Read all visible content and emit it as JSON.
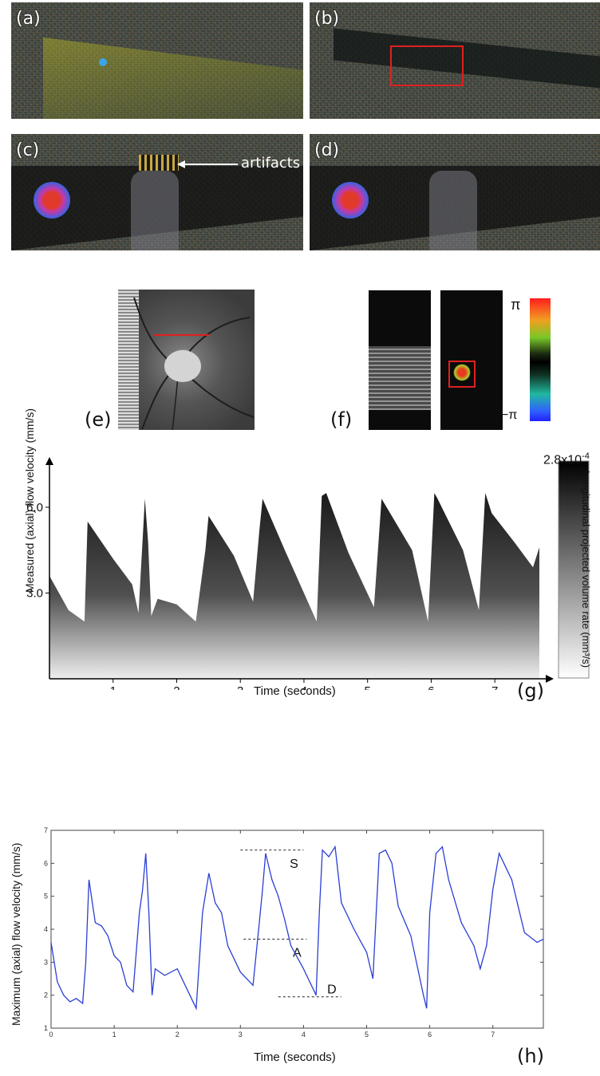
{
  "panels": {
    "a": {
      "label": "(a)"
    },
    "b": {
      "label": "(b)"
    },
    "c": {
      "label": "(c)",
      "annotation": "artifacts"
    },
    "d": {
      "label": "(d)"
    },
    "e": {
      "label": "(e)"
    },
    "f": {
      "label": "(f)",
      "colorbar_top": "π",
      "colorbar_bottom": "−π"
    },
    "g": {
      "label": "(g)"
    },
    "h": {
      "label": "(h)"
    }
  },
  "chart_data": [
    {
      "type": "heatmap",
      "panel": "g",
      "xlabel": "Time (seconds)",
      "ylabel": "Measured (axial) flow velocity (mm/s)",
      "colorbar_label": "Longitudinal projected volume rate (mm³/s)",
      "colorbar_max": "2.8x10",
      "colorbar_exp": "-4",
      "xticks": [
        "1",
        "2",
        "3",
        "4",
        "5",
        "6",
        "7"
      ],
      "yticks": [
        "3.0",
        "6.0"
      ],
      "xlim": [
        0,
        7.7
      ],
      "ylim": [
        0,
        7.2
      ],
      "envelope": {
        "x": [
          0,
          0.3,
          0.55,
          0.6,
          1.0,
          1.3,
          1.4,
          1.5,
          1.55,
          1.6,
          1.7,
          2.0,
          2.3,
          2.45,
          2.5,
          2.9,
          3.2,
          3.3,
          3.35,
          3.7,
          4.2,
          4.28,
          4.35,
          4.7,
          5.1,
          5.22,
          5.3,
          5.7,
          5.95,
          6.05,
          6.1,
          6.5,
          6.75,
          6.85,
          6.95,
          7.3,
          7.6,
          7.7
        ],
        "y": [
          3.6,
          2.4,
          2.0,
          5.5,
          4.2,
          3.3,
          2.3,
          6.3,
          4.8,
          2.2,
          2.8,
          2.6,
          2.0,
          4.5,
          5.7,
          4.3,
          2.7,
          5.2,
          6.3,
          4.5,
          2.0,
          6.4,
          6.5,
          4.4,
          2.5,
          6.3,
          6.0,
          4.5,
          2.0,
          6.5,
          6.3,
          4.5,
          2.4,
          6.5,
          5.8,
          4.8,
          3.9,
          4.6
        ]
      }
    },
    {
      "type": "line",
      "panel": "h",
      "xlabel": "Time (seconds)",
      "ylabel": "Maximum (axial) flow velocity (mm/s)",
      "xlim": [
        0,
        7.8
      ],
      "ylim": [
        1,
        7
      ],
      "xticks": [
        "0",
        "1",
        "2",
        "3",
        "4",
        "5",
        "6",
        "7"
      ],
      "yticks": [
        "1",
        "2",
        "3",
        "4",
        "5",
        "6",
        "7"
      ],
      "series": [
        {
          "x": [
            0,
            0.1,
            0.2,
            0.3,
            0.4,
            0.5,
            0.55,
            0.6,
            0.7,
            0.8,
            0.9,
            1.0,
            1.1,
            1.2,
            1.3,
            1.4,
            1.45,
            1.5,
            1.55,
            1.6,
            1.65,
            1.8,
            2.0,
            2.2,
            2.3,
            2.4,
            2.5,
            2.6,
            2.7,
            2.8,
            3.0,
            3.2,
            3.3,
            3.35,
            3.4,
            3.5,
            3.6,
            3.7,
            3.8,
            4.0,
            4.2,
            4.25,
            4.3,
            4.4,
            4.5,
            4.6,
            4.8,
            5.0,
            5.1,
            5.2,
            5.3,
            5.4,
            5.5,
            5.7,
            5.9,
            5.95,
            6.0,
            6.1,
            6.2,
            6.3,
            6.5,
            6.7,
            6.8,
            6.9,
            7.0,
            7.1,
            7.3,
            7.5,
            7.7,
            7.8
          ],
          "y": [
            3.6,
            2.4,
            2.0,
            1.8,
            1.9,
            1.75,
            3.0,
            5.5,
            4.2,
            4.1,
            3.8,
            3.2,
            3.0,
            2.3,
            2.1,
            4.5,
            5.2,
            6.3,
            4.5,
            2.0,
            2.8,
            2.6,
            2.8,
            2.0,
            1.6,
            4.5,
            5.7,
            4.8,
            4.5,
            3.5,
            2.7,
            2.3,
            4.2,
            5.2,
            6.3,
            5.5,
            5.0,
            4.3,
            3.5,
            2.8,
            2.0,
            4.5,
            6.4,
            6.2,
            6.5,
            4.8,
            4.0,
            3.3,
            2.5,
            6.3,
            6.4,
            6.0,
            4.7,
            3.8,
            2.0,
            1.6,
            4.5,
            6.3,
            6.5,
            5.5,
            4.2,
            3.5,
            2.8,
            3.5,
            5.2,
            6.3,
            5.5,
            3.9,
            3.6,
            3.7
          ],
          "color": "#2b3fd6"
        }
      ],
      "annotations": [
        {
          "text": "S",
          "y": 6.4,
          "x_start": 3.0,
          "x_end": 4.0
        },
        {
          "text": "A",
          "y": 3.7,
          "x_start": 3.05,
          "x_end": 4.05
        },
        {
          "text": "D",
          "y": 1.95,
          "x_start": 3.6,
          "x_end": 4.6
        }
      ]
    }
  ]
}
